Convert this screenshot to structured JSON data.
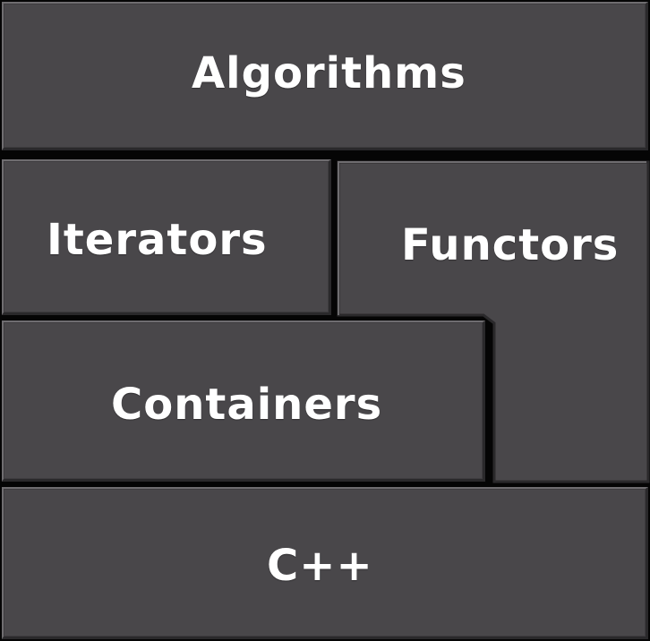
{
  "layers": {
    "top": {
      "label": "Algorithms"
    },
    "iterators": {
      "label": "Iterators"
    },
    "functors": {
      "label": "Functors"
    },
    "containers": {
      "label": "Containers"
    },
    "base": {
      "label": "C++"
    }
  },
  "colors": {
    "block_fill": "#49474a",
    "highlight": "#6f6d70",
    "shadow": "#2a292b",
    "gap": "#050505",
    "text": "#ffffff"
  }
}
